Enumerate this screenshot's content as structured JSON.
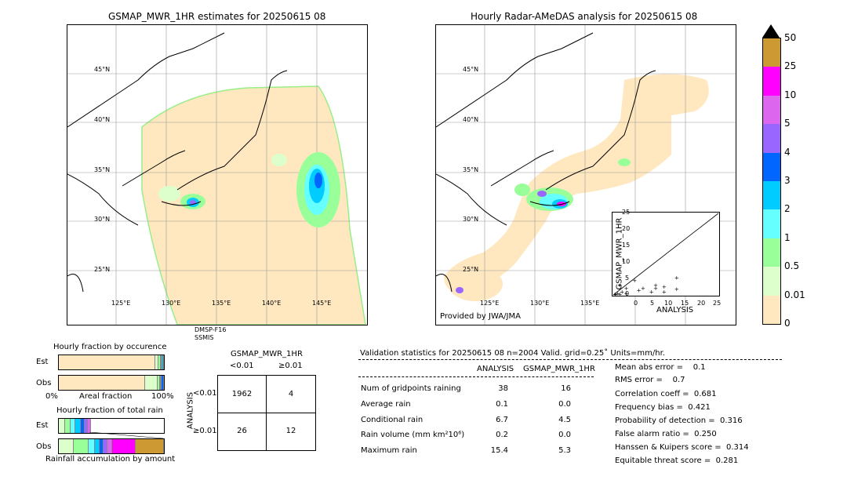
{
  "left_map": {
    "title": "GSMAP_MWR_1HR estimates for 20250615 08",
    "lat_labels": [
      "45°N",
      "40°N",
      "35°N",
      "30°N",
      "25°N"
    ],
    "lon_labels": [
      "125°E",
      "130°E",
      "135°E",
      "140°E",
      "145°E"
    ],
    "sensor_line1": "DMSP-F16",
    "sensor_line2": "SSMIS"
  },
  "right_map": {
    "title": "Hourly Radar-AMeDAS analysis for 20250615 08",
    "lat_labels": [
      "45°N",
      "40°N",
      "35°N",
      "30°N",
      "25°N"
    ],
    "lon_labels": [
      "125°E",
      "130°E",
      "135°E"
    ],
    "provider": "Provided by JWA/JMA"
  },
  "colorbar": {
    "labels": [
      "50",
      "25",
      "10",
      "5",
      "4",
      "3",
      "2",
      "1",
      "0.5",
      "0.01",
      "0"
    ],
    "colors": [
      "#cc9933",
      "#ff00ff",
      "#dd66ee",
      "#9966ff",
      "#0066ff",
      "#00ccff",
      "#66ffff",
      "#99ff99",
      "#ddffcc",
      "#ffe8c0"
    ]
  },
  "scatter_inset": {
    "xlabel": "ANALYSIS",
    "ylabel": "GSMAP_MWR_1HR",
    "x_ticks": [
      "0",
      "5",
      "10",
      "15",
      "20",
      "25"
    ],
    "y_ticks": [
      "0",
      "5",
      "10",
      "15",
      "20",
      "25"
    ]
  },
  "fraction_panel": {
    "title_occurrence": "Hourly fraction by occurence",
    "est_label": "Est",
    "obs_label": "Obs",
    "axis_left": "0%",
    "axis_mid": "Areal fraction",
    "axis_right": "100%",
    "title_total": "Hourly fraction of total rain",
    "est2_label": "Est",
    "obs2_label": "Obs",
    "footer": "Rainfall accumulation by amount"
  },
  "contingency": {
    "title": "GSMAP_MWR_1HR",
    "col1": "<0.01",
    "col2": "≥0.01",
    "row_axis": "ANALYSIS",
    "row1": "<0.01",
    "row2": "≥0.01",
    "cells": [
      [
        "1962",
        "4"
      ],
      [
        "26",
        "12"
      ]
    ]
  },
  "validation": {
    "header": "Validation statistics for 20250615 08  n=2004 Valid. grid=0.25˚ Units=mm/hr.",
    "col_analysis": "ANALYSIS",
    "col_gsmap": "GSMAP_MWR_1HR",
    "rows": [
      {
        "label": "Num of gridpoints raining",
        "a": "38",
        "g": "16"
      },
      {
        "label": "Average rain",
        "a": "0.1",
        "g": "0.0"
      },
      {
        "label": "Conditional rain",
        "a": "6.7",
        "g": "4.5"
      },
      {
        "label": "Rain volume (mm km²10⁶)",
        "a": "0.2",
        "g": "0.0"
      },
      {
        "label": "Maximum rain",
        "a": "15.4",
        "g": "5.3"
      }
    ],
    "scores": [
      "Mean abs error =    0.1",
      "RMS error =    0.7",
      "Correlation coeff =  0.681",
      "Frequency bias =  0.421",
      "Probability of detection =  0.316",
      "False alarm ratio =  0.250",
      "Hanssen & Kuipers score =  0.314",
      "Equitable threat score =  0.281"
    ]
  },
  "chart_data": [
    {
      "type": "scatter",
      "title": "",
      "xlabel": "ANALYSIS",
      "ylabel": "GSMAP_MWR_1HR",
      "xlim": [
        0,
        25
      ],
      "ylim": [
        0,
        25
      ],
      "points": [
        [
          0.5,
          0.2
        ],
        [
          1,
          0.5
        ],
        [
          1.5,
          0.3
        ],
        [
          2,
          1
        ],
        [
          3,
          0.5
        ],
        [
          3,
          2
        ],
        [
          5,
          4.5
        ],
        [
          6,
          1.5
        ],
        [
          7,
          2
        ],
        [
          9,
          1
        ],
        [
          10,
          2
        ],
        [
          10,
          3
        ],
        [
          12,
          1
        ],
        [
          12,
          2.5
        ],
        [
          15,
          5.3
        ],
        [
          15,
          1.8
        ],
        [
          1.5,
          3
        ],
        [
          0.3,
          0.1
        ]
      ]
    },
    {
      "type": "bar",
      "title": "Hourly fraction by occurence",
      "categories": [
        "Est",
        "Obs"
      ],
      "series": [
        {
          "name": "0",
          "values": [
            0.92,
            0.82
          ]
        },
        {
          "name": "0.01",
          "values": [
            0.03,
            0.12
          ]
        },
        {
          "name": "0.5",
          "values": [
            0.02,
            0.02
          ]
        },
        {
          "name": "1",
          "values": [
            0.01,
            0.01
          ]
        },
        {
          "name": "2",
          "values": [
            0.01,
            0.01
          ]
        },
        {
          "name": "3",
          "values": [
            0.01,
            0.02
          ]
        }
      ]
    },
    {
      "type": "bar",
      "title": "Hourly fraction of total rain",
      "categories": [
        "Est",
        "Obs"
      ],
      "series": [
        {
          "name": "0.01",
          "values": [
            0.06,
            0.16
          ]
        },
        {
          "name": "0.5",
          "values": [
            0.05,
            0.15
          ]
        },
        {
          "name": "1",
          "values": [
            0.05,
            0.07
          ]
        },
        {
          "name": "2",
          "values": [
            0.05,
            0.05
          ]
        },
        {
          "name": "3",
          "values": [
            0.04,
            0.04
          ]
        },
        {
          "name": "4",
          "values": [
            0.03,
            0.04
          ]
        },
        {
          "name": "5",
          "values": [
            0.03,
            0.05
          ]
        },
        {
          "name": "10",
          "values": [
            0.0,
            0.24
          ]
        },
        {
          "name": "25",
          "values": [
            0.0,
            0.3
          ]
        }
      ]
    },
    {
      "type": "table",
      "title": "GSMAP_MWR_1HR",
      "columns": [
        "<0.01",
        "≥0.01"
      ],
      "rows": [
        "<0.01",
        "≥0.01"
      ],
      "values": [
        [
          1962,
          4
        ],
        [
          26,
          12
        ]
      ]
    }
  ]
}
